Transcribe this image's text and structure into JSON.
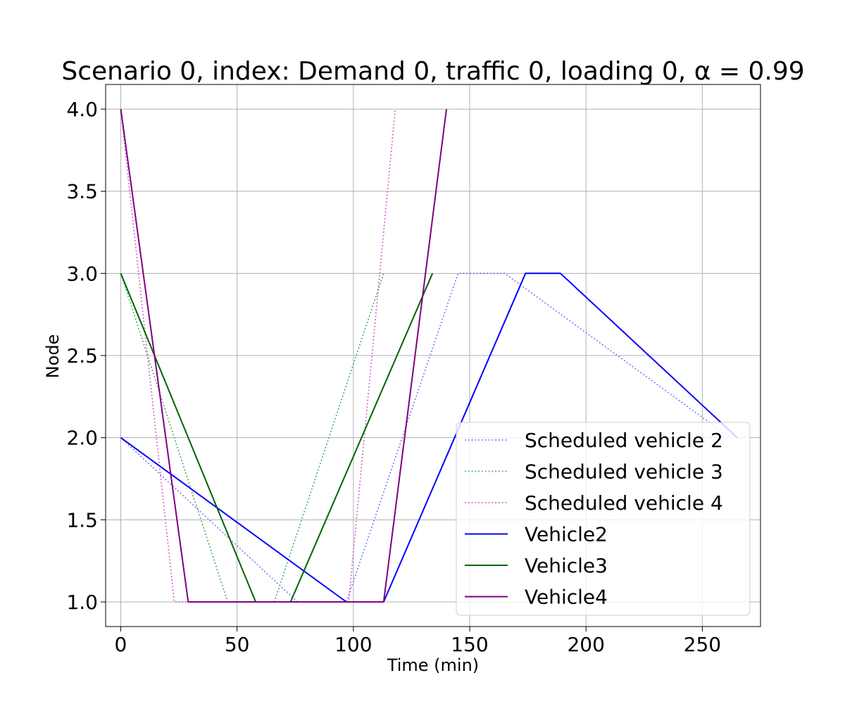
{
  "chart_data": {
    "type": "line",
    "title": "Scenario 0, index: Demand 0, traffic 0, loading 0, α = 0.99",
    "xlabel": "Time (min)",
    "ylabel": "Node",
    "xlim": [
      -6.5,
      275
    ],
    "ylim": [
      0.85,
      4.15
    ],
    "x_ticks": [
      0,
      50,
      100,
      150,
      200,
      250
    ],
    "x_tick_labels": [
      "0",
      "50",
      "100",
      "150",
      "200",
      "250"
    ],
    "y_ticks": [
      1.0,
      1.5,
      2.0,
      2.5,
      3.0,
      3.5,
      4.0
    ],
    "y_tick_labels": [
      "1.0",
      "1.5",
      "2.0",
      "2.5",
      "3.0",
      "3.5",
      "4.0"
    ],
    "grid": true,
    "legend_position": "lower-right",
    "series": [
      {
        "name": "Scheduled vehicle 2",
        "style": "dotted",
        "color": "#7777ff",
        "x": [
          0,
          76,
          97,
          145,
          165,
          262
        ],
        "y": [
          2.0,
          1.0,
          1.0,
          3.0,
          3.0,
          2.0
        ]
      },
      {
        "name": "Scheduled vehicle 3",
        "style": "dotted",
        "color": "#55aa55",
        "x": [
          0,
          46,
          66,
          113
        ],
        "y": [
          3.0,
          1.0,
          1.0,
          3.0
        ]
      },
      {
        "name": "Scheduled vehicle 4",
        "style": "dotted",
        "color": "#cc66cc",
        "x": [
          0,
          23,
          98,
          118
        ],
        "y": [
          4.0,
          1.0,
          1.0,
          4.0
        ]
      },
      {
        "name": "Vehicle2",
        "style": "solid",
        "color": "#0000ff",
        "x": [
          0,
          97,
          113,
          174,
          189,
          265
        ],
        "y": [
          2.0,
          1.0,
          1.0,
          3.0,
          3.0,
          2.0
        ]
      },
      {
        "name": "Vehicle3",
        "style": "solid",
        "color": "#006400",
        "x": [
          0,
          58,
          73,
          134
        ],
        "y": [
          3.0,
          1.0,
          1.0,
          3.0
        ]
      },
      {
        "name": "Vehicle4",
        "style": "solid",
        "color": "#800080",
        "x": [
          0,
          29,
          113,
          140
        ],
        "y": [
          4.0,
          1.0,
          1.0,
          4.0
        ]
      }
    ]
  }
}
